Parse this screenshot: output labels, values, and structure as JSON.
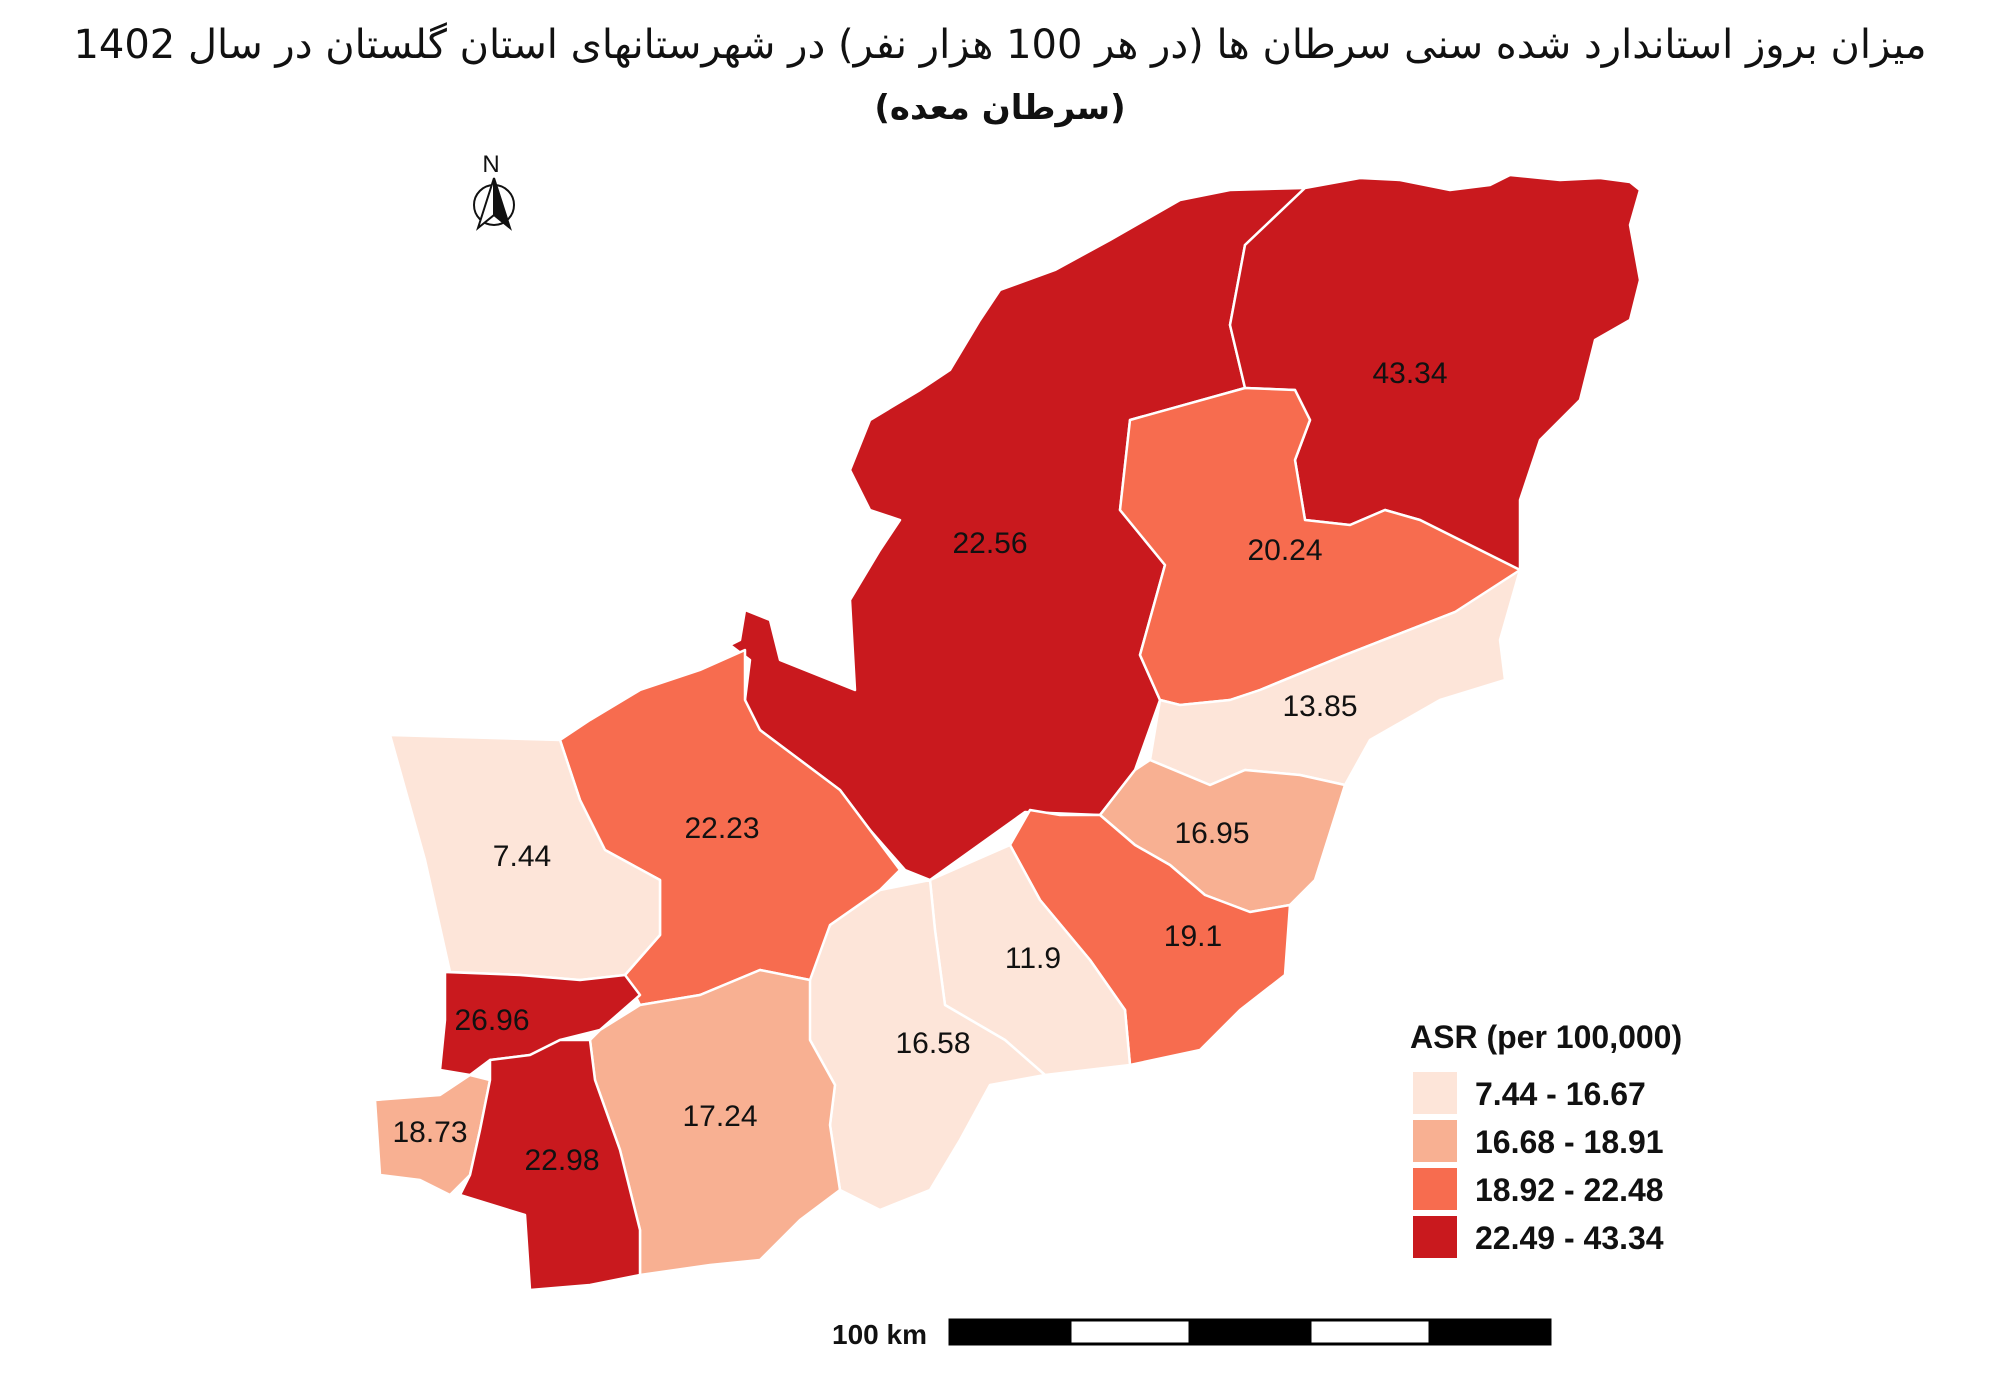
{
  "map": {
    "title": "میزان بروز استاندارد شده سنی سرطان ها (در هر 100 هزار نفر) در شهرستانهای استان گلستان در سال 1402",
    "subtitle": "(سرطان معده)",
    "north_arrow": {
      "letter": "N"
    },
    "legend": {
      "title": "ASR (per 100,000)",
      "classes": [
        {
          "label": "7.44 - 16.67",
          "color": "#fde5d9"
        },
        {
          "label": "16.68 - 18.91",
          "color": "#f8b092"
        },
        {
          "label": "18.92 - 22.48",
          "color": "#f76c4f"
        },
        {
          "label": "22.49 - 43.34",
          "color": "#c9191e"
        }
      ]
    },
    "scale_bar": {
      "label": "100 km",
      "segments": 5
    },
    "districts": [
      {
        "value": "22.56",
        "class": 3
      },
      {
        "value": "43.34",
        "class": 3
      },
      {
        "value": "20.24",
        "class": 2
      },
      {
        "value": "13.85",
        "class": 0
      },
      {
        "value": "16.95",
        "class": 1
      },
      {
        "value": "19.1",
        "class": 2
      },
      {
        "value": "11.9",
        "class": 0
      },
      {
        "value": "16.58",
        "class": 0
      },
      {
        "value": "22.23",
        "class": 2
      },
      {
        "value": "7.44",
        "class": 0
      },
      {
        "value": "26.96",
        "class": 3
      },
      {
        "value": "17.24",
        "class": 1
      },
      {
        "value": "18.73",
        "class": 1
      },
      {
        "value": "22.98",
        "class": 3
      }
    ]
  }
}
